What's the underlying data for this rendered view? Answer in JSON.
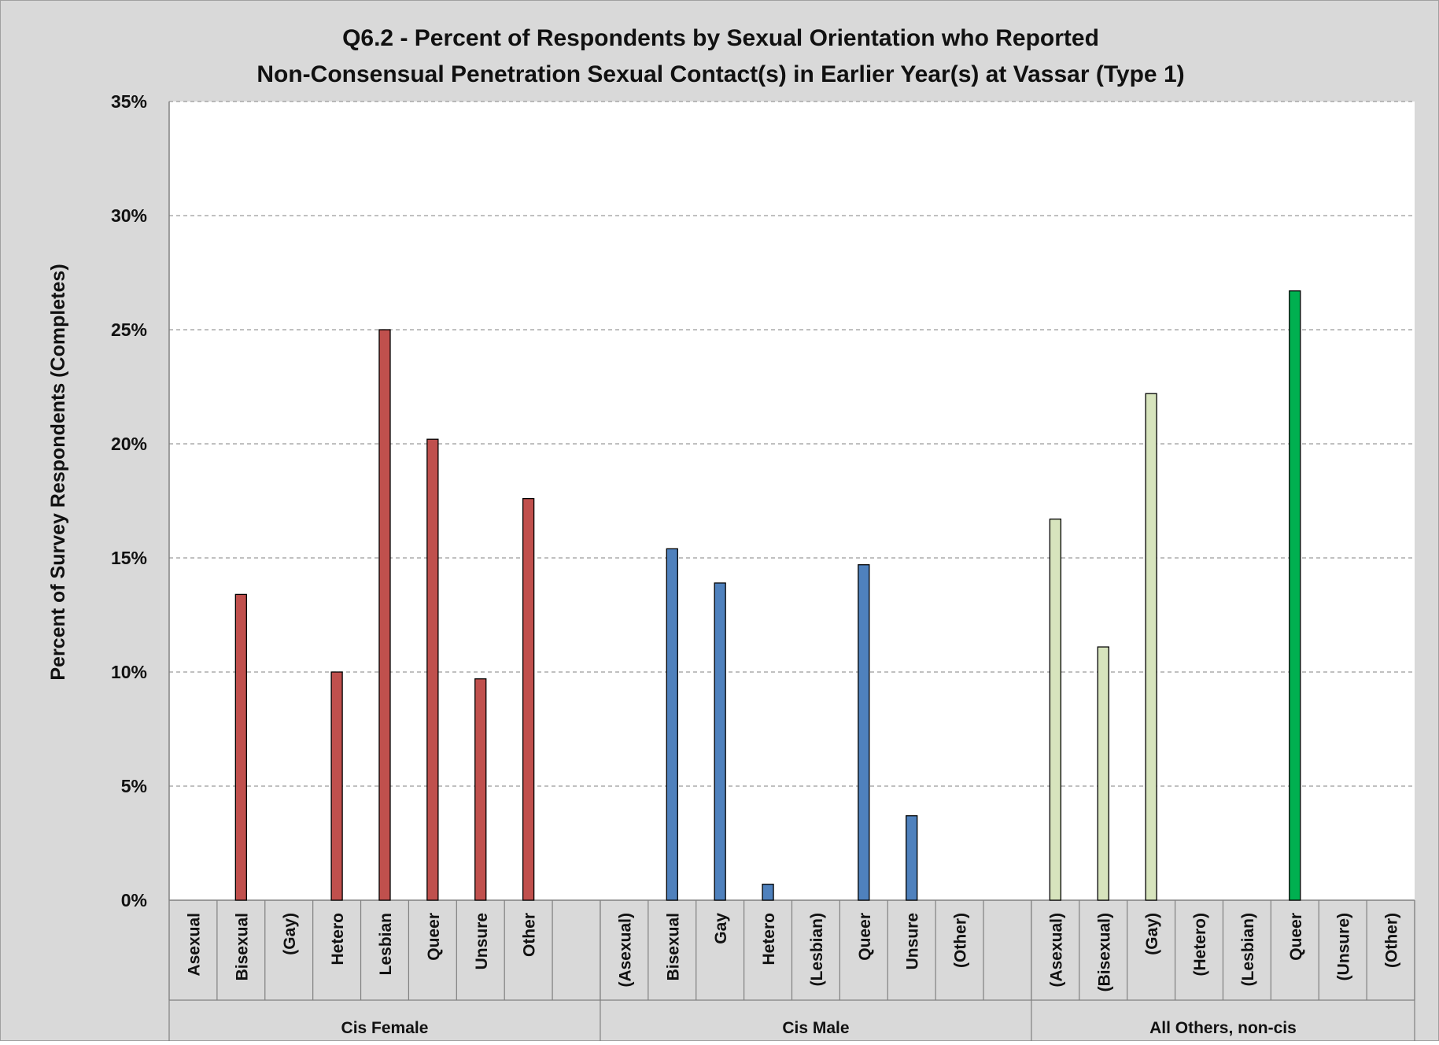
{
  "chart_data": {
    "type": "bar",
    "title": [
      "Q6.2 - Percent of Respondents by Sexual Orientation who Reported",
      "Non-Consensual Penetration Sexual Contact(s) in Earlier Year(s) at Vassar    (Type 1)"
    ],
    "ylabel": "Percent of Survey Respondents  (Completes)",
    "xlabel": "",
    "ylim": [
      0,
      35
    ],
    "yticks": [
      "0%",
      "5%",
      "10%",
      "15%",
      "20%",
      "25%",
      "30%",
      "35%"
    ],
    "grid": true,
    "colors": {
      "background": "#d9d9d9",
      "plot_area": "#ffffff",
      "grid": "#9a9a9a",
      "cis_female": "#c0504d",
      "cis_male": "#4f81bd",
      "others": "#d7e4bd",
      "others_highlight": "#00b050"
    },
    "groups": [
      {
        "name": "Cis Female",
        "color": "#c0504d",
        "categories": [
          "Asexual",
          "Bisexual",
          "(Gay)",
          "Hetero",
          "Lesbian",
          "Queer",
          "Unsure",
          "Other"
        ],
        "values": [
          0,
          13.4,
          0,
          10.0,
          25.0,
          20.2,
          9.7,
          17.6
        ],
        "colors": [
          "#c0504d",
          "#c0504d",
          "#c0504d",
          "#c0504d",
          "#c0504d",
          "#c0504d",
          "#c0504d",
          "#c0504d"
        ]
      },
      {
        "name": "Cis Male",
        "color": "#4f81bd",
        "categories": [
          "(Asexual)",
          "Bisexual",
          "Gay",
          "Hetero",
          "(Lesbian)",
          "Queer",
          "Unsure",
          "(Other)"
        ],
        "values": [
          0,
          15.4,
          13.9,
          0.7,
          0,
          14.7,
          3.7,
          0
        ],
        "colors": [
          "#4f81bd",
          "#4f81bd",
          "#4f81bd",
          "#4f81bd",
          "#4f81bd",
          "#4f81bd",
          "#4f81bd",
          "#4f81bd"
        ]
      },
      {
        "name": "All Others, non-cis",
        "color": "#d7e4bd",
        "categories": [
          "(Asexual)",
          "(Bisexual)",
          "(Gay)",
          "(Hetero)",
          "(Lesbian)",
          "Queer",
          "(Unsure)",
          "(Other)"
        ],
        "values": [
          16.7,
          11.1,
          22.2,
          0,
          0,
          26.7,
          0,
          0
        ],
        "colors": [
          "#d7e4bd",
          "#d7e4bd",
          "#d7e4bd",
          "#d7e4bd",
          "#d7e4bd",
          "#00b050",
          "#d7e4bd",
          "#d7e4bd"
        ]
      }
    ]
  }
}
